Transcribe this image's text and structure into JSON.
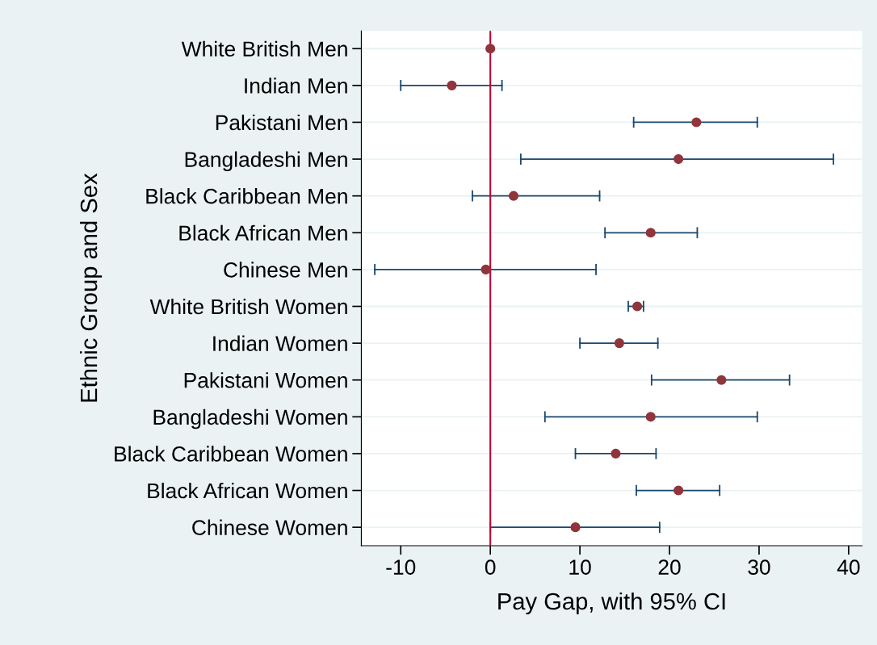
{
  "chart_data": {
    "type": "scatter",
    "xlabel": "Pay Gap, with 95% CI",
    "ylabel": "Ethnic Group and Sex",
    "categories": [
      "White British Men",
      "Indian Men",
      "Pakistani Men",
      "Bangladeshi Men",
      "Black Caribbean Men",
      "Black African Men",
      "Chinese Men",
      "White British Women",
      "Indian Women",
      "Pakistani Women",
      "Bangladeshi Women",
      "Black Caribbean Women",
      "Black African Women",
      "Chinese Women"
    ],
    "orientation": "horizontal",
    "series": [
      {
        "color": "#90353b",
        "values": [
          0,
          -4.3,
          23.0,
          21.0,
          2.6,
          17.9,
          -0.5,
          16.4,
          14.4,
          25.8,
          17.9,
          14.0,
          21.0,
          9.5
        ],
        "errors": [
          null,
          [
            -10.0,
            1.3
          ],
          [
            16.0,
            29.8
          ],
          [
            3.4,
            38.3
          ],
          [
            -2.0,
            12.2
          ],
          [
            12.8,
            23.1
          ],
          [
            -12.9,
            11.8
          ],
          [
            15.4,
            17.1
          ],
          [
            10.0,
            18.7
          ],
          [
            18.0,
            33.4
          ],
          [
            6.1,
            29.8
          ],
          [
            9.5,
            18.5
          ],
          [
            16.3,
            25.6
          ],
          [
            0.0,
            18.9
          ]
        ]
      }
    ],
    "xlim": [
      -14.4,
      41.5
    ],
    "xticks": [
      -10,
      0,
      10,
      20,
      30,
      40
    ],
    "ref_lines": [
      {
        "axis": "x",
        "value": 0,
        "color": "#c10534"
      }
    ],
    "grid": "y",
    "marker": "circle"
  }
}
